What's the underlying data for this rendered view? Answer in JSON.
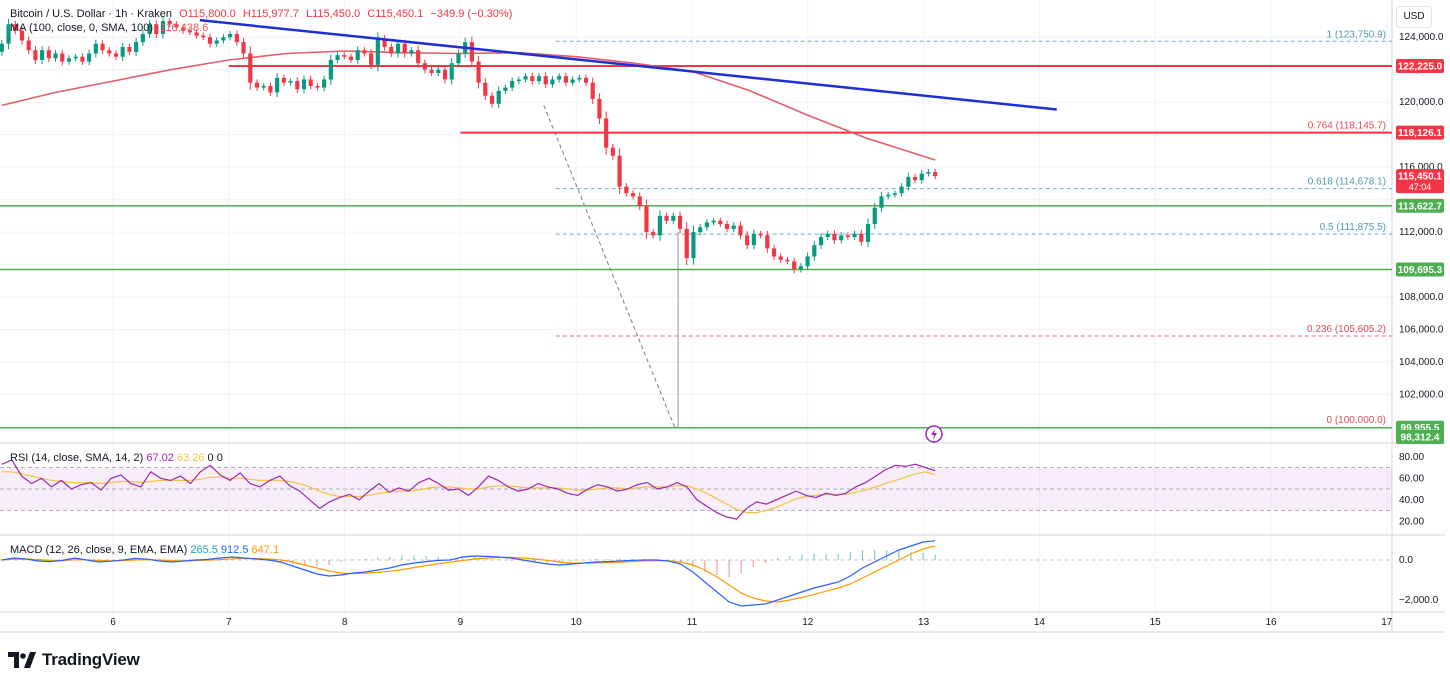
{
  "header": {
    "symbol": "Bitcoin / U.S. Dollar · 1h · Kraken",
    "open": "O115,800.0",
    "high": "H115,977.7",
    "low": "L115,450.0",
    "close": "C115,450.1",
    "change": "−349.9 (−0.30%)",
    "ma_label": "MA (100, close, 0, SMA, 100)",
    "ma_value": "116,438.6"
  },
  "currency": "USD",
  "logo_text": "TradingView",
  "colors": {
    "up": "#089981",
    "down": "#f23645",
    "ma": "#e35d6a",
    "trend": "#1e2fd6",
    "resistance": "#f23645",
    "support": "#4caf50",
    "fib_blue": "#4d9ab6",
    "fib_red": "#e04a58",
    "rsi": "#9c27b0",
    "rsi_ma": "#f5c242",
    "macd": "#2962ff",
    "signal": "#ff9800"
  },
  "chart_data": [
    {
      "type": "candlestick",
      "x_axis": {
        "labels": [
          "6",
          "7",
          "8",
          "9",
          "10",
          "11",
          "12",
          "13",
          "14",
          "15",
          "16",
          "17"
        ]
      },
      "y_axis": {
        "ylim": [
          99200,
          125800
        ],
        "ticks": [
          100000,
          102000,
          104000,
          106000,
          108000,
          110000,
          112000,
          114000,
          116000,
          118000,
          120000,
          122000,
          124000
        ],
        "tick_labels": [
          "100,000.0",
          "102,000.0",
          "104,000.0",
          "106,000.0",
          "108,000.0",
          "110,000.0",
          "112,000.0",
          "114,000.0",
          "116,000.0",
          "118,000.0",
          "120,000.0",
          "122,000.0",
          "124,000.0"
        ]
      },
      "candle_time_range": [
        5.04,
        13.1
      ],
      "candles_close": [
        123600,
        124800,
        124400,
        123800,
        123200,
        122600,
        123200,
        122700,
        123000,
        122500,
        122700,
        122800,
        122500,
        123000,
        123600,
        123200,
        123000,
        122800,
        123400,
        123100,
        123700,
        124200,
        124800,
        124200,
        125000,
        124800,
        124600,
        124400,
        124300,
        124100,
        124000,
        123600,
        123800,
        124000,
        124200,
        123700,
        123000,
        121200,
        120900,
        121000,
        120600,
        121500,
        121200,
        121300,
        120800,
        121400,
        121000,
        120900,
        121400,
        122600,
        122900,
        122800,
        122600,
        123200,
        123000,
        122300,
        123900,
        123400,
        123000,
        123600,
        123000,
        123200,
        122400,
        122000,
        121800,
        122000,
        121400,
        122400,
        123000,
        123700,
        122500,
        121200,
        120400,
        119900,
        120700,
        120900,
        121300,
        121400,
        121600,
        121300,
        121600,
        121100,
        121400,
        121600,
        121200,
        121400,
        121500,
        121200,
        120200,
        119000,
        117200,
        116700,
        114800,
        114400,
        114200,
        113600,
        112000,
        111800,
        113000,
        112700,
        113000,
        112200,
        110400,
        112000,
        112300,
        112600,
        112700,
        112500,
        112200,
        112400,
        111800,
        111200,
        111900,
        111800,
        111000,
        110500,
        110300,
        110200,
        109700,
        109900,
        110500,
        111200,
        111700,
        111900,
        111500,
        111800,
        111700,
        111900,
        111400,
        112500,
        113500,
        114200,
        114300,
        114400,
        114800,
        115400,
        115200,
        115600,
        115700,
        115450
      ],
      "ma100": {
        "x": [
          5.04,
          5.5,
          6.0,
          6.5,
          7.0,
          7.5,
          8.0,
          8.5,
          9.0,
          9.5,
          10.0,
          10.5,
          11.0,
          11.5,
          12.0,
          12.5,
          13.1
        ],
        "y": [
          119800,
          120600,
          121300,
          122000,
          122600,
          123000,
          123150,
          123050,
          123000,
          123050,
          122800,
          122400,
          121900,
          120700,
          119200,
          117800,
          116440
        ]
      },
      "trendline": {
        "x": [
          6.75,
          14.15
        ],
        "y": [
          125050,
          119550
        ]
      },
      "resistance_lines": [
        {
          "x": [
            7.0,
            17.0
          ],
          "y": 122225,
          "label": "122,225.0"
        },
        {
          "x": [
            9.0,
            17.0
          ],
          "y": 118126,
          "label": "118,126.1"
        }
      ],
      "support_lines": [
        {
          "x": [
            5.04,
            17.0
          ],
          "y": 113622.7,
          "label": "113,622.7"
        },
        {
          "x": [
            5.04,
            17.0
          ],
          "y": 109695.3,
          "label": "109,695.3"
        },
        {
          "x": [
            5.04,
            17.0
          ],
          "y": 99955.5,
          "label": "99,955.5"
        }
      ],
      "fib_levels": [
        {
          "level": "1",
          "value": 123750.9,
          "label": "1 (123,750.9)"
        },
        {
          "level": "0.764",
          "value": 118145.7,
          "label": "0.764 (118,145.7)"
        },
        {
          "level": "0.618",
          "value": 114678.1,
          "label": "0.618 (114,678.1)"
        },
        {
          "level": "0.5",
          "value": 111875.5,
          "label": "0.5 (111,875.5)"
        },
        {
          "level": "0.236",
          "value": 105605.2,
          "label": "0.236 (105,605.2)"
        },
        {
          "level": "0",
          "value": 100000.0,
          "label": "0 (100,000.0)"
        }
      ],
      "fib_range_start": 10.6,
      "fib_diagonal": {
        "x": [
          9.72,
          10.85
        ],
        "y": [
          119800,
          100000
        ]
      },
      "long_wick": {
        "x": 10.88,
        "low": 99955
      },
      "price_label": {
        "value": 115450.1,
        "label": "115,450.1",
        "countdown": "47:04"
      },
      "alert_label": {
        "value": 98312.4,
        "label": "98,312.4"
      },
      "partial_tick_labels": [
        "110,000.0",
        "114,000.0"
      ]
    },
    {
      "type": "line",
      "name": "RSI",
      "legend": {
        "label": "RSI (14, close, SMA, 14, 2)",
        "rsi": "67.02",
        "ma": "63.26",
        "v1": "0",
        "v2": "0"
      },
      "ylim": [
        10,
        90
      ],
      "band": [
        30,
        70
      ],
      "ticks": [
        20,
        40,
        60,
        80
      ],
      "tick_labels": [
        "20.00",
        "40.00",
        "60.00",
        "80.00"
      ],
      "x_range": [
        5.04,
        13.1
      ],
      "values": [
        73,
        77,
        62,
        55,
        60,
        52,
        58,
        50,
        54,
        56,
        49,
        60,
        63,
        55,
        52,
        66,
        60,
        58,
        62,
        55,
        66,
        72,
        63,
        58,
        65,
        55,
        52,
        58,
        62,
        53,
        48,
        40,
        32,
        38,
        42,
        45,
        40,
        48,
        55,
        47,
        51,
        48,
        56,
        60,
        55,
        49,
        50,
        44,
        52,
        62,
        58,
        52,
        48,
        50,
        55,
        52,
        50,
        46,
        44,
        50,
        54,
        52,
        48,
        50,
        54,
        56,
        50,
        52,
        56,
        52,
        40,
        34,
        28,
        24,
        22,
        32,
        38,
        36,
        40,
        44,
        48,
        44,
        42,
        46,
        44,
        46,
        52,
        56,
        62,
        68,
        72,
        71,
        73,
        70,
        67
      ],
      "ma_values": [
        66,
        66,
        64,
        62,
        60,
        58,
        57,
        56,
        56,
        56,
        55,
        56,
        57,
        57,
        56,
        57,
        58,
        58,
        58,
        58,
        59,
        61,
        61,
        60,
        60,
        59,
        58,
        58,
        58,
        57,
        55,
        52,
        48,
        45,
        43,
        43,
        43,
        44,
        46,
        47,
        48,
        48,
        49,
        51,
        52,
        52,
        51,
        50,
        50,
        52,
        53,
        53,
        52,
        51,
        51,
        51,
        51,
        50,
        49,
        49,
        50,
        51,
        51,
        50,
        51,
        52,
        52,
        52,
        53,
        53,
        50,
        46,
        41,
        36,
        31,
        28,
        28,
        30,
        33,
        37,
        41,
        43,
        44,
        45,
        45,
        45,
        47,
        49,
        52,
        55,
        58,
        61,
        64,
        66,
        63
      ]
    },
    {
      "type": "line",
      "name": "MACD",
      "legend": {
        "label": "MACD (12, 26, close, 9, EMA, EMA)",
        "hist": "265.5",
        "macd": "912.5",
        "signal": "647.1"
      },
      "ylim": [
        -2400,
        1100
      ],
      "ticks": [
        0,
        -2000
      ],
      "tick_labels": [
        "0.0",
        "−2,000.0"
      ],
      "x_range": [
        5.04,
        13.1
      ],
      "macd_values": [
        0,
        100,
        50,
        -50,
        -80,
        -20,
        100,
        0,
        -100,
        -60,
        0,
        80,
        40,
        -50,
        -100,
        -50,
        0,
        30,
        100,
        150,
        100,
        50,
        0,
        -100,
        -300,
        -500,
        -700,
        -800,
        -750,
        -650,
        -600,
        -500,
        -400,
        -250,
        -150,
        -80,
        -20,
        0,
        150,
        200,
        180,
        150,
        100,
        0,
        -100,
        -200,
        -250,
        -200,
        -150,
        -100,
        -80,
        -50,
        -20,
        0,
        0,
        -50,
        -200,
        -600,
        -1100,
        -1600,
        -2100,
        -2300,
        -2250,
        -2200,
        -2000,
        -1800,
        -1600,
        -1400,
        -1250,
        -1100,
        -800,
        -400,
        -100,
        200,
        500,
        700,
        900,
        960
      ],
      "signal_values": [
        0,
        40,
        50,
        20,
        -20,
        -30,
        10,
        10,
        -20,
        -40,
        -30,
        0,
        20,
        0,
        -30,
        -40,
        -30,
        -10,
        20,
        60,
        80,
        70,
        50,
        0,
        -100,
        -250,
        -400,
        -550,
        -650,
        -680,
        -660,
        -620,
        -560,
        -480,
        -380,
        -280,
        -180,
        -110,
        -30,
        50,
        100,
        130,
        130,
        100,
        50,
        -20,
        -100,
        -150,
        -160,
        -150,
        -130,
        -110,
        -80,
        -50,
        -30,
        -40,
        -100,
        -250,
        -500,
        -850,
        -1250,
        -1650,
        -1900,
        -2050,
        -2100,
        -2000,
        -1880,
        -1720,
        -1560,
        -1400,
        -1200,
        -900,
        -600,
        -300,
        0,
        300,
        550,
        700
      ],
      "histogram": [
        0,
        60,
        0,
        -70,
        -60,
        10,
        90,
        -10,
        -80,
        -20,
        30,
        80,
        20,
        -50,
        -70,
        -10,
        30,
        40,
        80,
        90,
        20,
        -20,
        -50,
        -100,
        -200,
        -250,
        -300,
        -250,
        -100,
        30,
        60,
        120,
        160,
        230,
        230,
        200,
        160,
        110,
        180,
        150,
        80,
        20,
        -30,
        -100,
        -150,
        -180,
        -150,
        -50,
        10,
        50,
        50,
        60,
        60,
        50,
        30,
        -10,
        -100,
        -350,
        -600,
        -750,
        -850,
        -650,
        -350,
        -150,
        100,
        200,
        280,
        320,
        310,
        300,
        400,
        500,
        500,
        500,
        500,
        400,
        350,
        265
      ]
    }
  ]
}
